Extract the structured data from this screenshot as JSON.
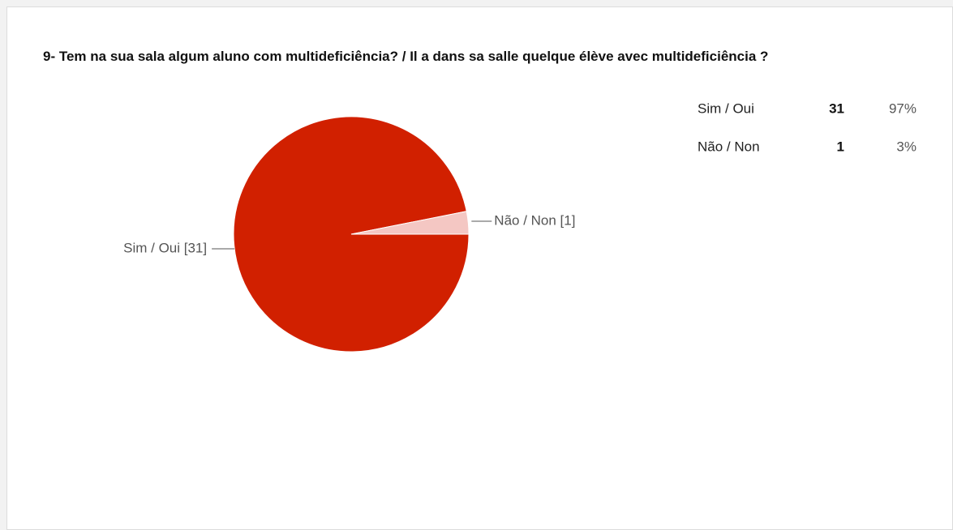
{
  "chart_data": {
    "type": "pie",
    "title": "9- Tem na sua sala algum aluno com multideficiência? / Il a dans sa salle quelque élève avec multideficiência ?",
    "categories": [
      "Sim / Oui",
      "Não / Non"
    ],
    "values": [
      31,
      1
    ],
    "slice_labels": [
      "Sim / Oui [31]",
      "Não / Non [1]"
    ],
    "colors": [
      "#d12000",
      "#f4c7c3"
    ],
    "percentages": [
      97,
      3
    ],
    "percentage_labels": [
      "97%",
      "3%"
    ]
  }
}
